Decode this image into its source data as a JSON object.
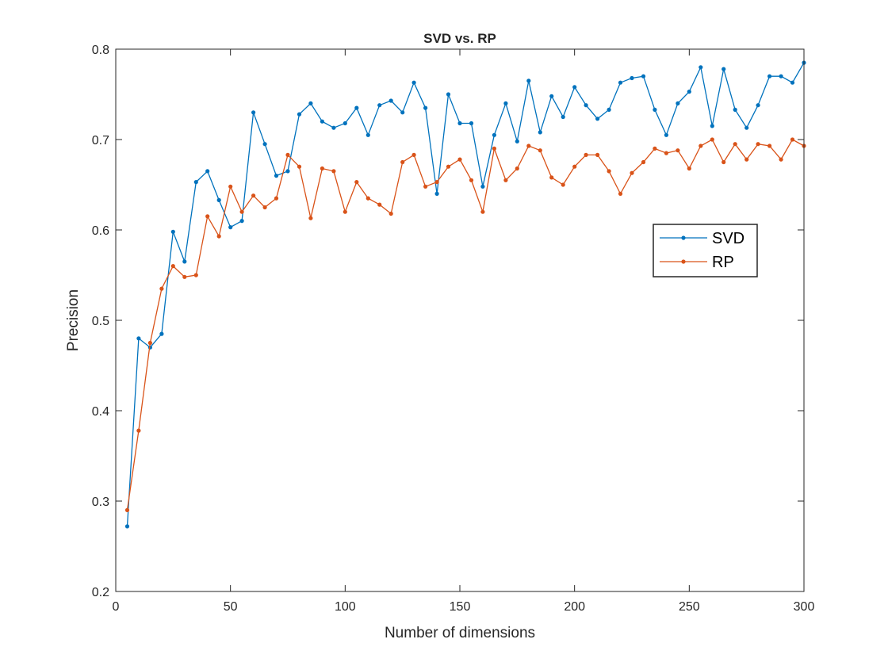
{
  "chart_data": {
    "type": "line",
    "title": "SVD vs. RP",
    "xlabel": "Number of dimensions",
    "ylabel": "Precision",
    "xlim": [
      0,
      300
    ],
    "ylim": [
      0.2,
      0.8
    ],
    "xticks": [
      0,
      50,
      100,
      150,
      200,
      250,
      300
    ],
    "yticks": [
      0.2,
      0.3,
      0.4,
      0.5,
      0.6,
      0.7,
      0.8
    ],
    "xtick_labels": [
      "0",
      "50",
      "100",
      "150",
      "200",
      "250",
      "300"
    ],
    "ytick_labels": [
      "0.2",
      "0.3",
      "0.4",
      "0.5",
      "0.6",
      "0.7",
      "0.8"
    ],
    "grid": false,
    "legend_position": "right",
    "x": [
      5,
      10,
      15,
      20,
      25,
      30,
      35,
      40,
      45,
      50,
      55,
      60,
      65,
      70,
      75,
      80,
      85,
      90,
      95,
      100,
      105,
      110,
      115,
      120,
      125,
      130,
      135,
      140,
      145,
      150,
      155,
      160,
      165,
      170,
      175,
      180,
      185,
      190,
      195,
      200,
      205,
      210,
      215,
      220,
      225,
      230,
      235,
      240,
      245,
      250,
      255,
      260,
      265,
      270,
      275,
      280,
      285,
      290,
      295,
      300
    ],
    "series": [
      {
        "name": "SVD",
        "color": "#0072BD",
        "values": [
          0.272,
          0.48,
          0.47,
          0.485,
          0.598,
          0.565,
          0.653,
          0.665,
          0.633,
          0.603,
          0.61,
          0.73,
          0.695,
          0.66,
          0.665,
          0.728,
          0.74,
          0.72,
          0.713,
          0.718,
          0.735,
          0.705,
          0.738,
          0.743,
          0.73,
          0.763,
          0.735,
          0.64,
          0.75,
          0.718,
          0.718,
          0.648,
          0.705,
          0.74,
          0.698,
          0.765,
          0.708,
          0.748,
          0.725,
          0.758,
          0.738,
          0.723,
          0.733,
          0.763,
          0.768,
          0.77,
          0.733,
          0.705,
          0.74,
          0.753,
          0.78,
          0.715,
          0.778,
          0.733,
          0.713,
          0.738,
          0.77,
          0.77,
          0.763,
          0.785
        ]
      },
      {
        "name": "RP",
        "color": "#D95319",
        "values": [
          0.29,
          0.378,
          0.475,
          0.535,
          0.56,
          0.548,
          0.55,
          0.615,
          0.593,
          0.648,
          0.62,
          0.638,
          0.625,
          0.635,
          0.683,
          0.67,
          0.613,
          0.668,
          0.665,
          0.62,
          0.653,
          0.635,
          0.628,
          0.618,
          0.675,
          0.683,
          0.648,
          0.653,
          0.67,
          0.678,
          0.655,
          0.62,
          0.69,
          0.655,
          0.668,
          0.693,
          0.688,
          0.658,
          0.65,
          0.67,
          0.683,
          0.683,
          0.665,
          0.64,
          0.663,
          0.675,
          0.69,
          0.685,
          0.688,
          0.668,
          0.693,
          0.7,
          0.675,
          0.695,
          0.678,
          0.695,
          0.693,
          0.678,
          0.7,
          0.693
        ]
      }
    ]
  }
}
